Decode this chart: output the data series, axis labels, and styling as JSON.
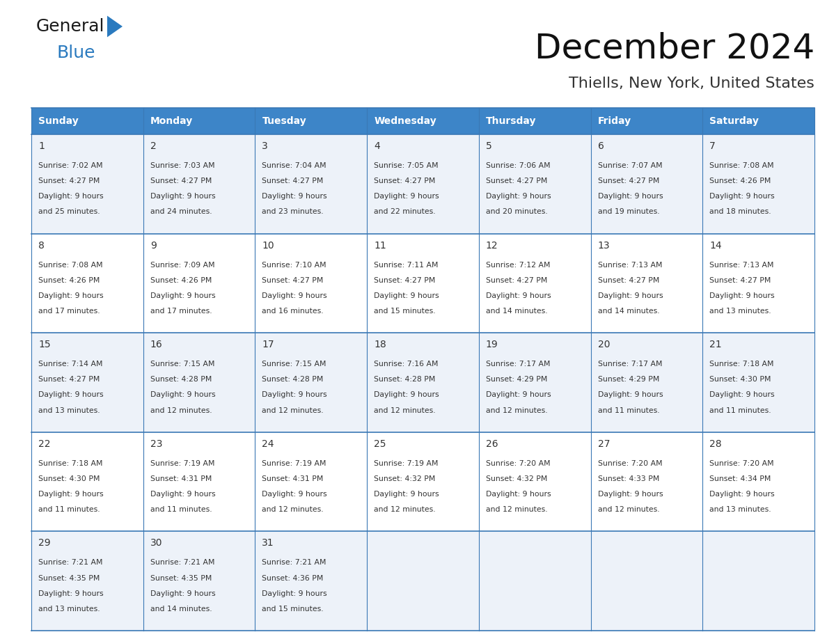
{
  "title": "December 2024",
  "subtitle": "Thiells, New York, United States",
  "header_bg": "#3d85c8",
  "header_text_color": "#ffffff",
  "cell_bg_odd": "#edf2f9",
  "cell_bg_even": "#ffffff",
  "border_color": "#3a78b5",
  "day_names": [
    "Sunday",
    "Monday",
    "Tuesday",
    "Wednesday",
    "Thursday",
    "Friday",
    "Saturday"
  ],
  "days": [
    {
      "day": 1,
      "row": 0,
      "col": 0,
      "sunrise": "7:02 AM",
      "sunset": "4:27 PM",
      "daylight_hours": 9,
      "daylight_minutes": 25
    },
    {
      "day": 2,
      "row": 0,
      "col": 1,
      "sunrise": "7:03 AM",
      "sunset": "4:27 PM",
      "daylight_hours": 9,
      "daylight_minutes": 24
    },
    {
      "day": 3,
      "row": 0,
      "col": 2,
      "sunrise": "7:04 AM",
      "sunset": "4:27 PM",
      "daylight_hours": 9,
      "daylight_minutes": 23
    },
    {
      "day": 4,
      "row": 0,
      "col": 3,
      "sunrise": "7:05 AM",
      "sunset": "4:27 PM",
      "daylight_hours": 9,
      "daylight_minutes": 22
    },
    {
      "day": 5,
      "row": 0,
      "col": 4,
      "sunrise": "7:06 AM",
      "sunset": "4:27 PM",
      "daylight_hours": 9,
      "daylight_minutes": 20
    },
    {
      "day": 6,
      "row": 0,
      "col": 5,
      "sunrise": "7:07 AM",
      "sunset": "4:27 PM",
      "daylight_hours": 9,
      "daylight_minutes": 19
    },
    {
      "day": 7,
      "row": 0,
      "col": 6,
      "sunrise": "7:08 AM",
      "sunset": "4:26 PM",
      "daylight_hours": 9,
      "daylight_minutes": 18
    },
    {
      "day": 8,
      "row": 1,
      "col": 0,
      "sunrise": "7:08 AM",
      "sunset": "4:26 PM",
      "daylight_hours": 9,
      "daylight_minutes": 17
    },
    {
      "day": 9,
      "row": 1,
      "col": 1,
      "sunrise": "7:09 AM",
      "sunset": "4:26 PM",
      "daylight_hours": 9,
      "daylight_minutes": 17
    },
    {
      "day": 10,
      "row": 1,
      "col": 2,
      "sunrise": "7:10 AM",
      "sunset": "4:27 PM",
      "daylight_hours": 9,
      "daylight_minutes": 16
    },
    {
      "day": 11,
      "row": 1,
      "col": 3,
      "sunrise": "7:11 AM",
      "sunset": "4:27 PM",
      "daylight_hours": 9,
      "daylight_minutes": 15
    },
    {
      "day": 12,
      "row": 1,
      "col": 4,
      "sunrise": "7:12 AM",
      "sunset": "4:27 PM",
      "daylight_hours": 9,
      "daylight_minutes": 14
    },
    {
      "day": 13,
      "row": 1,
      "col": 5,
      "sunrise": "7:13 AM",
      "sunset": "4:27 PM",
      "daylight_hours": 9,
      "daylight_minutes": 14
    },
    {
      "day": 14,
      "row": 1,
      "col": 6,
      "sunrise": "7:13 AM",
      "sunset": "4:27 PM",
      "daylight_hours": 9,
      "daylight_minutes": 13
    },
    {
      "day": 15,
      "row": 2,
      "col": 0,
      "sunrise": "7:14 AM",
      "sunset": "4:27 PM",
      "daylight_hours": 9,
      "daylight_minutes": 13
    },
    {
      "day": 16,
      "row": 2,
      "col": 1,
      "sunrise": "7:15 AM",
      "sunset": "4:28 PM",
      "daylight_hours": 9,
      "daylight_minutes": 12
    },
    {
      "day": 17,
      "row": 2,
      "col": 2,
      "sunrise": "7:15 AM",
      "sunset": "4:28 PM",
      "daylight_hours": 9,
      "daylight_minutes": 12
    },
    {
      "day": 18,
      "row": 2,
      "col": 3,
      "sunrise": "7:16 AM",
      "sunset": "4:28 PM",
      "daylight_hours": 9,
      "daylight_minutes": 12
    },
    {
      "day": 19,
      "row": 2,
      "col": 4,
      "sunrise": "7:17 AM",
      "sunset": "4:29 PM",
      "daylight_hours": 9,
      "daylight_minutes": 12
    },
    {
      "day": 20,
      "row": 2,
      "col": 5,
      "sunrise": "7:17 AM",
      "sunset": "4:29 PM",
      "daylight_hours": 9,
      "daylight_minutes": 11
    },
    {
      "day": 21,
      "row": 2,
      "col": 6,
      "sunrise": "7:18 AM",
      "sunset": "4:30 PM",
      "daylight_hours": 9,
      "daylight_minutes": 11
    },
    {
      "day": 22,
      "row": 3,
      "col": 0,
      "sunrise": "7:18 AM",
      "sunset": "4:30 PM",
      "daylight_hours": 9,
      "daylight_minutes": 11
    },
    {
      "day": 23,
      "row": 3,
      "col": 1,
      "sunrise": "7:19 AM",
      "sunset": "4:31 PM",
      "daylight_hours": 9,
      "daylight_minutes": 11
    },
    {
      "day": 24,
      "row": 3,
      "col": 2,
      "sunrise": "7:19 AM",
      "sunset": "4:31 PM",
      "daylight_hours": 9,
      "daylight_minutes": 12
    },
    {
      "day": 25,
      "row": 3,
      "col": 3,
      "sunrise": "7:19 AM",
      "sunset": "4:32 PM",
      "daylight_hours": 9,
      "daylight_minutes": 12
    },
    {
      "day": 26,
      "row": 3,
      "col": 4,
      "sunrise": "7:20 AM",
      "sunset": "4:32 PM",
      "daylight_hours": 9,
      "daylight_minutes": 12
    },
    {
      "day": 27,
      "row": 3,
      "col": 5,
      "sunrise": "7:20 AM",
      "sunset": "4:33 PM",
      "daylight_hours": 9,
      "daylight_minutes": 12
    },
    {
      "day": 28,
      "row": 3,
      "col": 6,
      "sunrise": "7:20 AM",
      "sunset": "4:34 PM",
      "daylight_hours": 9,
      "daylight_minutes": 13
    },
    {
      "day": 29,
      "row": 4,
      "col": 0,
      "sunrise": "7:21 AM",
      "sunset": "4:35 PM",
      "daylight_hours": 9,
      "daylight_minutes": 13
    },
    {
      "day": 30,
      "row": 4,
      "col": 1,
      "sunrise": "7:21 AM",
      "sunset": "4:35 PM",
      "daylight_hours": 9,
      "daylight_minutes": 14
    },
    {
      "day": 31,
      "row": 4,
      "col": 2,
      "sunrise": "7:21 AM",
      "sunset": "4:36 PM",
      "daylight_hours": 9,
      "daylight_minutes": 15
    }
  ],
  "logo_general_color": "#1a1a1a",
  "logo_blue_color": "#2a7abf",
  "logo_triangle_color": "#2a7abf",
  "fig_width": 11.88,
  "fig_height": 9.18
}
